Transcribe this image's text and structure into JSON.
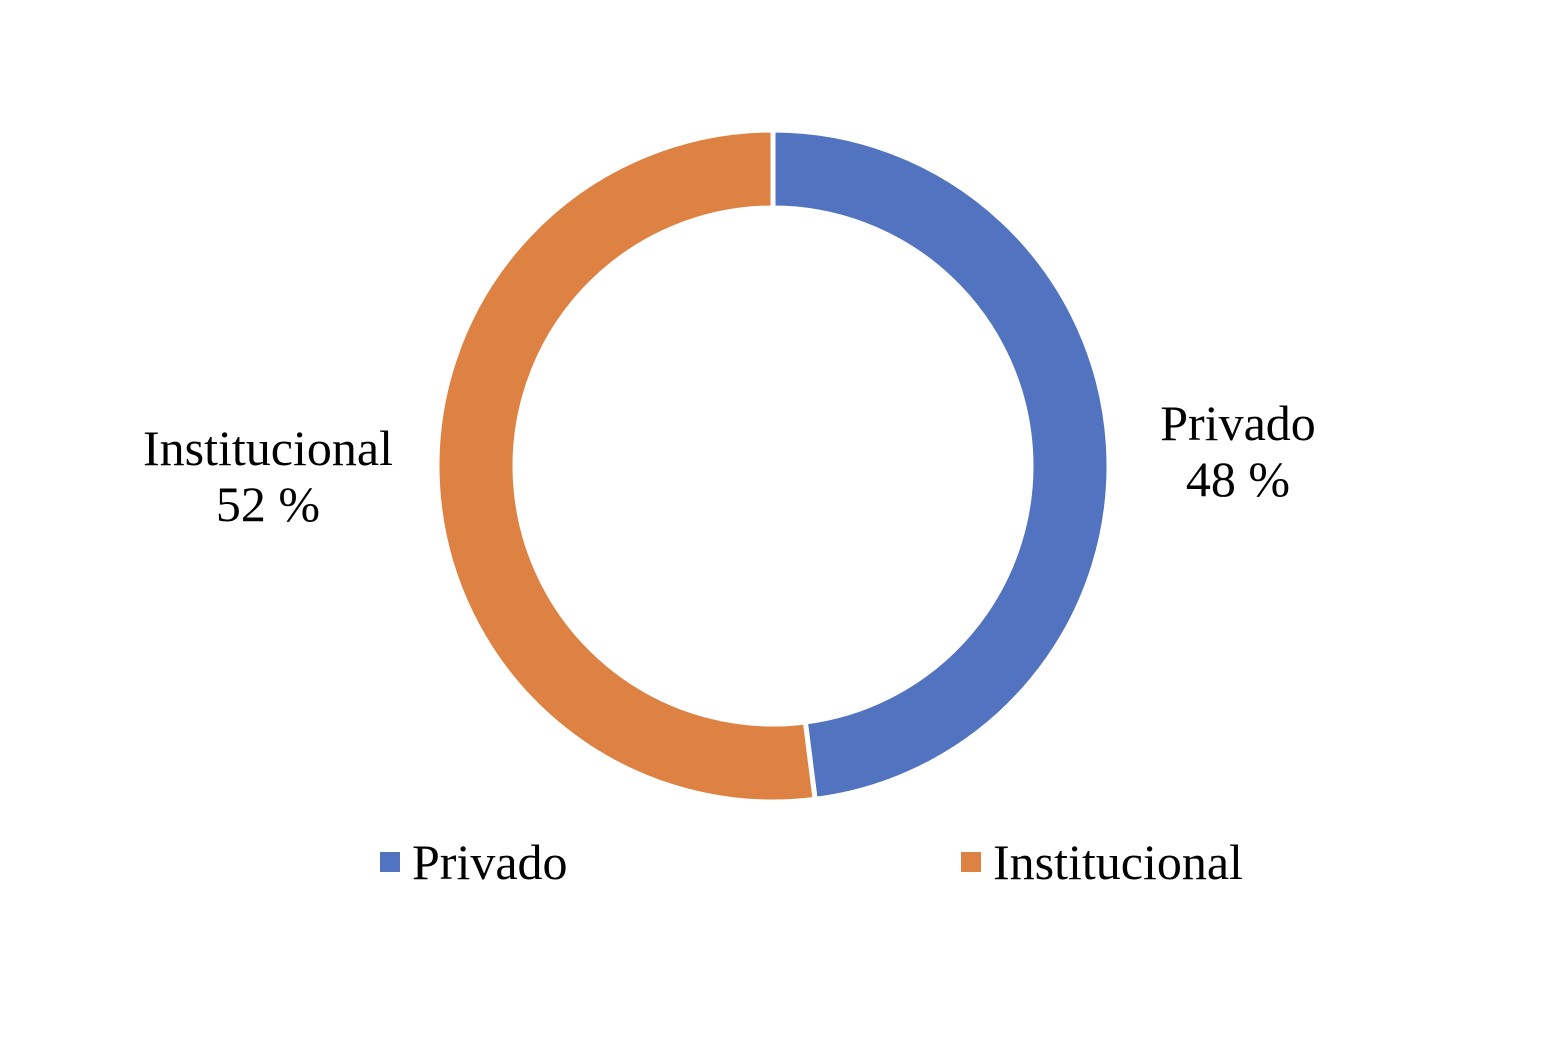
{
  "chart_data": {
    "type": "pie",
    "donut": true,
    "title": "",
    "categories": [
      "Privado",
      "Institucional"
    ],
    "values": [
      48,
      52
    ],
    "unit": "%",
    "colors": [
      "#5173C0",
      "#DE8244"
    ],
    "data_labels": [
      {
        "name": "Privado",
        "value_text": "48 %"
      },
      {
        "name": "Institucional",
        "value_text": "52 %"
      }
    ],
    "legend": {
      "position": "bottom",
      "items": [
        {
          "label": "Privado",
          "color": "#5173C0"
        },
        {
          "label": "Institucional",
          "color": "#DE8244"
        }
      ]
    }
  }
}
